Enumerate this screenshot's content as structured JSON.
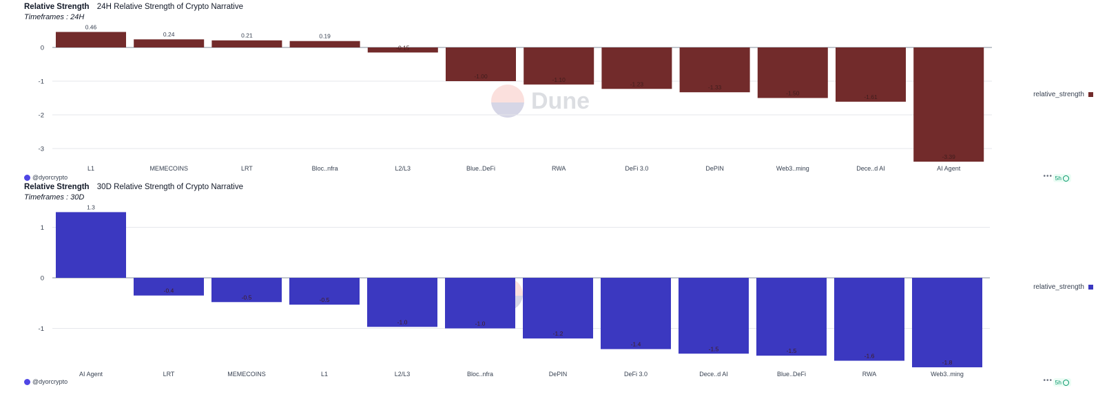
{
  "charts": [
    {
      "header_title": "Relative Strength",
      "header_subtitle": "24H Relative Strength of Crypto Narrative",
      "timeframe": "Timeframes : 24H",
      "author": "@dyorcrypto",
      "freshness": "5h",
      "watermark": "Dune",
      "legend_label": "relative_strength",
      "color": "#722b2b",
      "chart_data": {
        "type": "bar",
        "categories": [
          "L1",
          "MEMECOINS",
          "LRT",
          "Bloc..nfra",
          "L2/L3",
          "Blue..DeFi",
          "RWA",
          "DeFi 3.0",
          "DePIN",
          "Web3..ming",
          "Dece..d AI",
          "AI Agent"
        ],
        "values": [
          0.46,
          0.24,
          0.21,
          0.19,
          -0.15,
          -1.0,
          -1.1,
          -1.23,
          -1.33,
          -1.5,
          -1.61,
          -3.39
        ],
        "value_labels": [
          "0.46",
          "0.24",
          "0.21",
          "0.19",
          "-0.15",
          "-1.00",
          "-1.10",
          "-1.23",
          "-1.33",
          "-1.50",
          "-1.61",
          "-3.39"
        ],
        "yticks": [
          0,
          -1,
          -2,
          -3
        ],
        "ylim": [
          -3.39,
          0.46
        ],
        "series": [
          {
            "name": "relative_strength",
            "values": [
              0.46,
              0.24,
              0.21,
              0.19,
              -0.15,
              -1.0,
              -1.1,
              -1.23,
              -1.33,
              -1.5,
              -1.61,
              -3.39
            ]
          }
        ],
        "legend": "right",
        "grid": true
      }
    },
    {
      "header_title": "Relative Strength",
      "header_subtitle": "30D Relative Strength of Crypto Narrative",
      "timeframe": "Timeframes : 30D",
      "author": "@dyorcrypto",
      "freshness": "5h",
      "watermark": "Dune",
      "legend_label": "relative_strength",
      "color": "#3b38c0",
      "chart_data": {
        "type": "bar",
        "categories": [
          "AI Agent",
          "LRT",
          "MEMECOINS",
          "L1",
          "L2/L3",
          "Bloc..nfra",
          "DePIN",
          "DeFi 3.0",
          "Dece..d AI",
          "Blue..DeFi",
          "RWA",
          "Web3..ming"
        ],
        "values": [
          1.3,
          -0.35,
          -0.48,
          -0.53,
          -0.97,
          -1.0,
          -1.2,
          -1.41,
          -1.5,
          -1.54,
          -1.64,
          -1.77
        ],
        "value_labels": [
          "1.3",
          "-0.4",
          "-0.5",
          "-0.5",
          "-1.0",
          "-1.0",
          "-1.2",
          "-1.4",
          "-1.5",
          "-1.5",
          "-1.6",
          "-1.8"
        ],
        "yticks": [
          1,
          0,
          -1
        ],
        "ylim": [
          -1.77,
          1.3
        ],
        "series": [
          {
            "name": "relative_strength",
            "values": [
              1.3,
              -0.35,
              -0.48,
              -0.53,
              -0.97,
              -1.0,
              -1.2,
              -1.41,
              -1.5,
              -1.54,
              -1.64,
              -1.77
            ]
          }
        ],
        "legend": "right",
        "grid": true
      }
    }
  ]
}
